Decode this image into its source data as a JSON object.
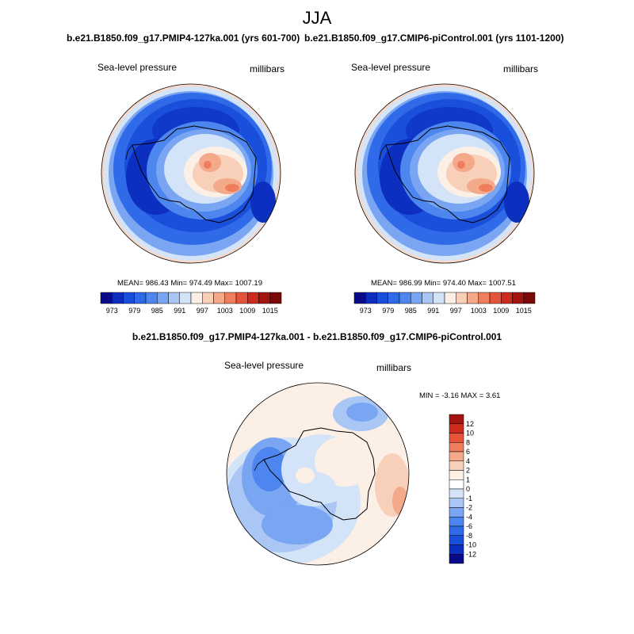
{
  "main_title": "JJA",
  "panels": [
    {
      "title": "b.e21.B1850.f09_g17.PMIP4-127ka.001 (yrs 601-700)",
      "variable": "Sea-level pressure",
      "units": "millibars",
      "stats": "MEAN= 986.43   Min= 974.49   Max= 1007.19"
    },
    {
      "title": "b.e21.B1850.f09_g17.CMIP6-piControl.001 (yrs 1101-1200)",
      "variable": "Sea-level pressure",
      "units": "millibars",
      "stats": "MEAN= 986.99   Min= 974.40   Max= 1007.51"
    }
  ],
  "abs_colorbar": {
    "ticks": [
      "973",
      "979",
      "985",
      "991",
      "997",
      "1003",
      "1009",
      "1015"
    ],
    "colors": [
      "#0a0a8c",
      "#0d2fc0",
      "#1a4fdc",
      "#2f6ae8",
      "#4d86ef",
      "#7aa5f2",
      "#a9c6f5",
      "#d4e4f8",
      "#fbefe6",
      "#f8cfb8",
      "#f4a98b",
      "#ef7e5e",
      "#e5533a",
      "#cd2c1c",
      "#a51212",
      "#7a0808"
    ]
  },
  "difference": {
    "title": "b.e21.B1850.f09_g17.PMIP4-127ka.001 - b.e21.B1850.f09_g17.CMIP6-piControl.001",
    "variable": "Sea-level pressure",
    "units": "millibars",
    "stats": "MIN =  -3.16 MAX =   3.61",
    "colorbar": {
      "ticks": [
        "12",
        "10",
        "8",
        "6",
        "4",
        "2",
        "1",
        "0",
        "-1",
        "-2",
        "-4",
        "-6",
        "-8",
        "-10",
        "-12"
      ],
      "colors": [
        "#a51212",
        "#cd2c1c",
        "#e5533a",
        "#ef7e5e",
        "#f4a98b",
        "#f8cfb8",
        "#fbefe6",
        "#ffffff",
        "#d4e4f8",
        "#a9c6f5",
        "#7aa5f2",
        "#4d86ef",
        "#2f6ae8",
        "#1a4fdc",
        "#0d2fc0",
        "#0a0a8c"
      ]
    }
  }
}
